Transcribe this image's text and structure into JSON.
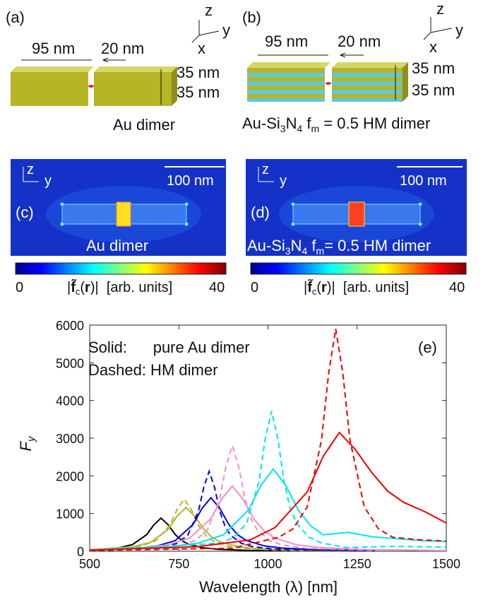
{
  "panel_a": {
    "label": "(a)",
    "length": "95 nm",
    "gap": "20 nm",
    "height_top": "35 nm",
    "height_bottom": "35 nm",
    "caption": "Au dimer",
    "axis_z": "z",
    "axis_y": "y",
    "axis_x": "x"
  },
  "panel_b": {
    "label": "(b)",
    "length": "95 nm",
    "gap": "20 nm",
    "height_top": "35 nm",
    "height_bottom": "35 nm",
    "caption_parts": [
      "Au-Si",
      "3",
      "N",
      "4",
      " f",
      "m",
      " = 0.5 HM dimer"
    ],
    "axis_z": "z",
    "axis_y": "y",
    "axis_x": "x"
  },
  "panel_c": {
    "label": "(c)",
    "axis_z": "z",
    "axis_y": "y",
    "scale": "100 nm",
    "caption": "Au dimer",
    "colorbar_ticks": [
      0,
      40
    ],
    "colorbar_label_parts": [
      "|",
      "f̃",
      "c",
      "(",
      "r",
      ")|",
      "  [arb. units]"
    ]
  },
  "panel_d": {
    "label": "(d)",
    "axis_z": "z",
    "axis_y": "y",
    "scale": "100 nm",
    "caption_parts": [
      "Au-Si",
      "3",
      "N",
      "4",
      " f",
      "m",
      "= 0.5 HM dimer"
    ],
    "colorbar_ticks": [
      0,
      40
    ],
    "colorbar_label_parts": [
      "|",
      "f̃",
      "c",
      "(",
      "r",
      ")|",
      "  [arb. units]"
    ]
  },
  "chart_data": {
    "type": "line",
    "panel_label": "(e)",
    "notes": [
      "Solid:      pure Au dimer",
      "Dashed: HM dimer"
    ],
    "ylabel_parts": [
      "F",
      "y"
    ],
    "xlabel": "Wavelength (λ) [nm]",
    "xlim": [
      500,
      1500
    ],
    "xticks": [
      500,
      750,
      1000,
      1250,
      1500
    ],
    "ylim": [
      0,
      6000
    ],
    "yticks": [
      0,
      1000,
      2000,
      3000,
      4000,
      5000,
      6000
    ],
    "series": [
      {
        "color": "#000000",
        "dashed": false,
        "x": [
          500,
          580,
          620,
          660,
          680,
          700,
          720,
          740,
          760,
          780,
          820,
          860,
          940,
          1100
        ],
        "values": [
          34,
          88,
          176,
          440,
          704,
          880,
          704,
          440,
          271,
          176,
          88,
          52,
          24,
          9
        ]
      },
      {
        "color": "#b5b526",
        "dashed": false,
        "x": [
          500,
          620,
          670,
          720,
          745,
          770,
          795,
          820,
          845,
          870,
          920,
          970,
          1070,
          1300
        ],
        "values": [
          38,
          116,
          232,
          580,
          928,
          1160,
          928,
          580,
          357,
          232,
          116,
          68,
          31,
          10
        ]
      },
      {
        "color": "#b5b526",
        "dashed": true,
        "x": [
          500,
          605,
          645,
          685,
          725,
          745,
          765,
          785,
          805,
          825,
          845,
          885,
          925,
          1005,
          1100
        ],
        "values": [
          31,
          81,
          138,
          276,
          690,
          1104,
          1380,
          1104,
          690,
          425,
          276,
          138,
          81,
          37,
          19
        ]
      },
      {
        "color": "#0000dd",
        "dashed": false,
        "x": [
          500,
          640,
          690,
          740,
          790,
          815,
          840,
          865,
          890,
          915,
          940,
          990,
          1040,
          1140,
          1300
        ],
        "values": [
          30,
          84,
          142,
          284,
          710,
          1136,
          1420,
          1136,
          710,
          437,
          284,
          142,
          84,
          38,
          17
        ]
      },
      {
        "color": "#0000dd",
        "dashed": true,
        "x": [
          500,
          715,
          745,
          775,
          805,
          820,
          835,
          850,
          865,
          880,
          895,
          925,
          955,
          1015,
          1300
        ],
        "values": [
          17,
          125,
          212,
          424,
          1060,
          1696,
          2120,
          1696,
          1060,
          653,
          424,
          212,
          125,
          57,
          9
        ]
      },
      {
        "color": "#f48fc0",
        "dashed": false,
        "x": [
          500,
          660,
          720,
          780,
          840,
          870,
          900,
          930,
          960,
          990,
          1020,
          1080,
          1140,
          1260,
          1500
        ],
        "values": [
          38,
          102,
          173,
          346,
          865,
          1384,
          1730,
          1384,
          865,
          533,
          346,
          173,
          102,
          47,
          17
        ]
      },
      {
        "color": "#f48fc0",
        "dashed": true,
        "x": [
          500,
          760,
          795,
          830,
          865,
          882,
          900,
          918,
          935,
          952,
          970,
          1005,
          1040,
          1110,
          1300
        ],
        "values": [
          21,
          165,
          280,
          560,
          1400,
          2240,
          2800,
          2240,
          1400,
          862,
          560,
          280,
          165,
          76,
          21
        ]
      },
      {
        "color": "#00e5f0",
        "dashed": false,
        "x": [
          500,
          735,
          805,
          875,
          945,
          980,
          1015,
          1050,
          1085,
          1120,
          1155,
          1225,
          1295,
          1435,
          1500
        ],
        "values": [
          39,
          128,
          218,
          436,
          1090,
          1744,
          2180,
          1744,
          1090,
          671,
          436,
          500,
          380,
          280,
          260
        ]
      },
      {
        "color": "#00e5f0",
        "dashed": true,
        "x": [
          500,
          870,
          905,
          940,
          975,
          992,
          1010,
          1028,
          1045,
          1062,
          1080,
          1115,
          1150,
          1220,
          1350,
          1500
        ],
        "values": [
          20,
          219,
          372,
          744,
          1860,
          2976,
          3720,
          2976,
          1860,
          1145,
          744,
          372,
          219,
          100,
          130,
          110
        ]
      },
      {
        "color": "#ee0000",
        "dashed": false,
        "x": [
          500,
          800,
          950,
          1020,
          1110,
          1155,
          1200,
          1245,
          1290,
          1335,
          1380,
          1440,
          1500
        ],
        "values": [
          30,
          120,
          300,
          630,
          1575,
          2520,
          3150,
          2700,
          2100,
          1600,
          1300,
          1050,
          750
        ]
      },
      {
        "color": "#ee0000",
        "dashed": true,
        "x": [
          500,
          900,
          1030,
          1070,
          1110,
          1150,
          1170,
          1190,
          1210,
          1230,
          1270,
          1310,
          1350,
          1430,
          1500
        ],
        "values": [
          20,
          80,
          369,
          590,
          1180,
          2950,
          4720,
          5900,
          4720,
          2950,
          1180,
          590,
          369,
          300,
          270
        ]
      }
    ]
  }
}
